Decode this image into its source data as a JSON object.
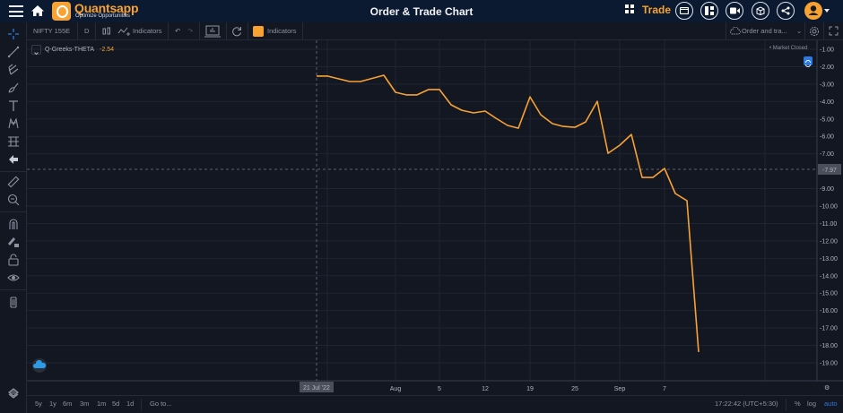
{
  "header": {
    "brand": "Quantsapp",
    "brand_tagline": "Optimize Opportunities",
    "title": "Order & Trade Chart",
    "trade_label": "Trade",
    "icons": [
      "menu-icon",
      "home-icon",
      "grid-icon",
      "folder-icon",
      "layout-icon",
      "video-icon",
      "package-icon",
      "share-icon",
      "user-icon"
    ]
  },
  "toolbar": {
    "symbol": "NIFTY 155E",
    "interval": "D",
    "indicators_label": "Indicators",
    "q_indicators_label": "Indicators",
    "order_trades": "Order and tra..."
  },
  "legend": {
    "series_name": "Q-Greeks-THETA",
    "series_value": "-2.54",
    "market_status": "Market Closed"
  },
  "crosshair": {
    "price_label": "-7.97",
    "date_label": "21 Jul '22"
  },
  "bottombar": {
    "ranges": [
      "5y",
      "1y",
      "6m",
      "3m",
      "1m",
      "5d",
      "1d"
    ],
    "goto": "Go to...",
    "time": "17:22:42 (UTC+5:30)",
    "pct": "%",
    "log": "log",
    "auto": "auto"
  },
  "colors": {
    "line": "#f7a233",
    "accent": "#2c7be5",
    "background": "#131722",
    "header": "#0b1a30"
  },
  "chart_data": {
    "type": "line",
    "title": "Q-Greeks-THETA",
    "xlabel": "",
    "ylabel": "",
    "ylim": [
      -19.5,
      -0.5
    ],
    "y_ticks": [
      "-1.00",
      "-2.00",
      "-3.00",
      "-4.00",
      "-5.00",
      "-6.00",
      "-7.00",
      "-9.00",
      "-10.00",
      "-11.00",
      "-12.00",
      "-13.00",
      "-14.00",
      "-15.00",
      "-16.00",
      "-17.00",
      "-18.00",
      "-19.00"
    ],
    "x_ticks": [
      "Aug",
      "5",
      "12",
      "19",
      "25",
      "Sep",
      "7"
    ],
    "grid": true,
    "legend_position": "top-left",
    "series": [
      {
        "name": "Q-Greeks-THETA",
        "x": [
          "Jul 21",
          "Jul 22",
          "Jul 25",
          "Jul 26",
          "Jul 28",
          "Aug 1",
          "Aug 2",
          "Aug 3",
          "Aug 4",
          "Aug 5",
          "Aug 8",
          "Aug 9",
          "Aug 10",
          "Aug 12",
          "Aug 15",
          "Aug 16",
          "Aug 17",
          "Aug 19",
          "Aug 22",
          "Aug 23",
          "Aug 24",
          "Aug 25",
          "Aug 26",
          "Aug 29",
          "Aug 30",
          "Sep 1",
          "Sep 2",
          "Sep 5",
          "Sep 6",
          "Sep 7",
          "Sep 8",
          "Sep 9",
          "Sep 12"
        ],
        "values": [
          -2.54,
          -2.54,
          -2.85,
          -2.85,
          -2.49,
          -3.47,
          -3.62,
          -3.62,
          -3.31,
          -3.31,
          -4.19,
          -4.5,
          -4.65,
          -4.55,
          -4.96,
          -5.37,
          -5.53,
          -3.73,
          -4.76,
          -5.27,
          -5.43,
          -5.48,
          -5.17,
          -3.99,
          -6.97,
          -6.51,
          -5.89,
          -8.36,
          -8.36,
          -7.84,
          -9.28,
          -9.69,
          -18.38
        ]
      }
    ]
  }
}
